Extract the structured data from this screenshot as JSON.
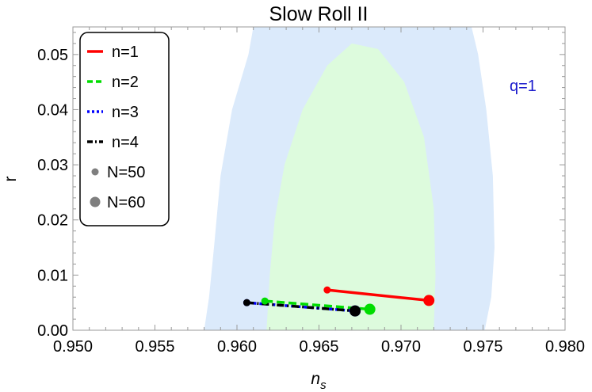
{
  "chart_data": {
    "type": "line",
    "title": "Slow Roll II",
    "xlabel_main": "n",
    "xlabel_sub": "s",
    "ylabel": "r",
    "xlim": [
      0.95,
      0.98
    ],
    "ylim": [
      0.0,
      0.055
    ],
    "x_ticks": [
      "0.950",
      "0.955",
      "0.960",
      "0.965",
      "0.970",
      "0.975",
      "0.980"
    ],
    "y_ticks": [
      "0.00",
      "0.01",
      "0.02",
      "0.03",
      "0.04",
      "0.05"
    ],
    "annotation": "q=1",
    "colors": {
      "region_outer": "#dbeafb",
      "region_inner": "#ddfbdd",
      "annotation": "#1a1acc"
    },
    "series": [
      {
        "name": "n=1",
        "color": "#ff0000",
        "dash": "solid",
        "points": [
          [
            0.9655,
            0.0073
          ],
          [
            0.9717,
            0.0054
          ]
        ]
      },
      {
        "name": "n=2",
        "color": "#00dd00",
        "dash": "dashed",
        "points": [
          [
            0.9617,
            0.0053
          ],
          [
            0.9681,
            0.0038
          ]
        ]
      },
      {
        "name": "n=3",
        "color": "#0000ff",
        "dash": "dotted",
        "points": [
          [
            0.9606,
            0.005
          ],
          [
            0.9672,
            0.0035
          ]
        ]
      },
      {
        "name": "n=4",
        "color": "#000000",
        "dash": "dashdot",
        "points": [
          [
            0.9606,
            0.005
          ],
          [
            0.9672,
            0.0035
          ]
        ]
      }
    ],
    "marker_legend": [
      {
        "name": "N=50",
        "size": "small"
      },
      {
        "name": "N=60",
        "size": "large"
      }
    ],
    "legend_position": "top-left",
    "grid": false
  }
}
